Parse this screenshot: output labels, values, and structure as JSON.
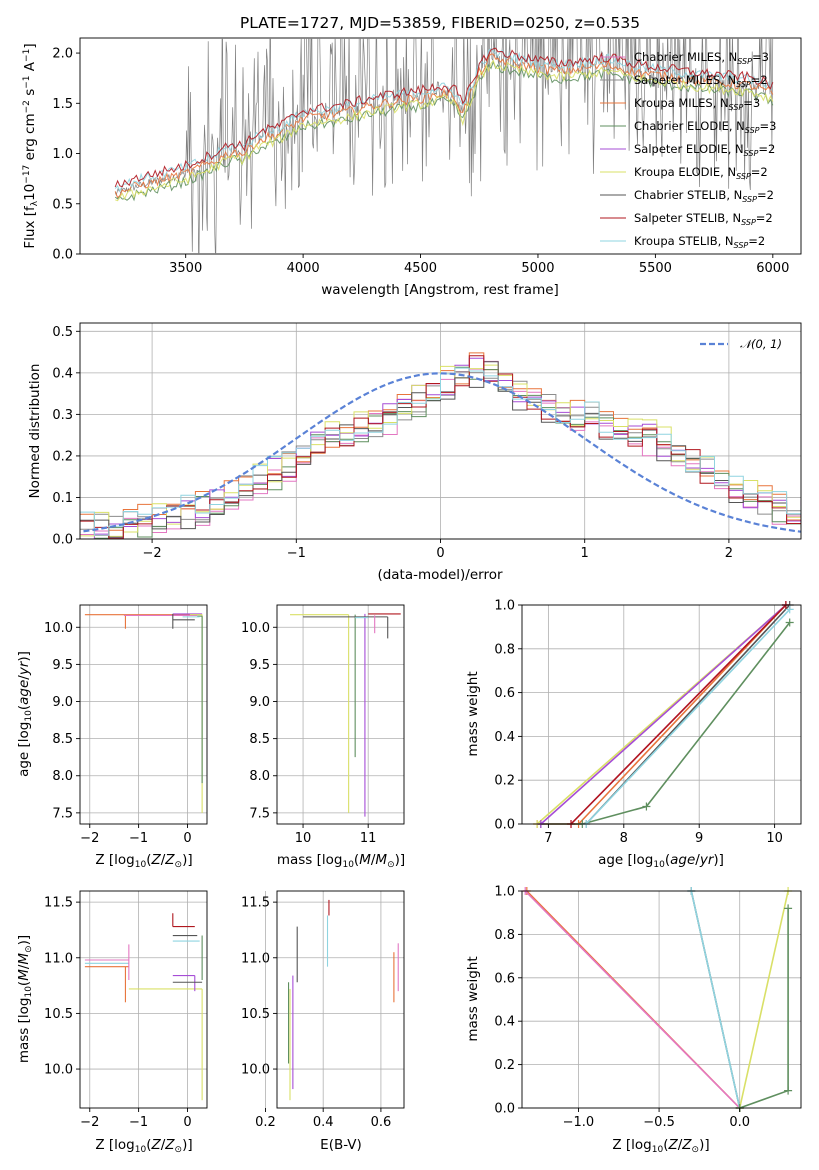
{
  "title": "PLATE=1727, MJD=53859, FIBERID=0250, z=0.535",
  "colors": {
    "Chabrier MILES": "#e377c2",
    "Salpeter MILES": "#8c8c8c",
    "Kroupa MILES": "#e8743b",
    "Chabrier ELODIE": "#5f8f5f",
    "Salpeter ELODIE": "#a64dd6",
    "Kroupa ELODIE": "#d9e067",
    "Chabrier STELIB": "#555555",
    "Salpeter STELIB": "#b0171f",
    "Kroupa STELIB": "#8fd4e0",
    "normal": "#5a82d6"
  },
  "chart_data": [
    {
      "id": "spectrum",
      "type": "line",
      "xlabel": "wavelength [Angstrom, rest frame]",
      "ylabel": "Flux [f",
      "xlim": [
        3050,
        6120
      ],
      "ylim": [
        0,
        2.15
      ],
      "xticks": [
        "3500",
        "4000",
        "4500",
        "5000",
        "5500",
        "6000"
      ],
      "yticks": [
        "0.0",
        "0.5",
        "1.0",
        "1.5",
        "2.0"
      ],
      "legend": [
        {
          "label": "Chabrier MILES, N",
          "n": "=3"
        },
        {
          "label": "Salpeter MILES, N",
          "n": "=2"
        },
        {
          "label": "Kroupa MILES, N",
          "n": "=3"
        },
        {
          "label": "Chabrier ELODIE, N",
          "n": "=3"
        },
        {
          "label": "Salpeter ELODIE, N",
          "n": "=2"
        },
        {
          "label": "Kroupa ELODIE, N",
          "n": "=2"
        },
        {
          "label": "Chabrier STELIB, N",
          "n": "=2"
        },
        {
          "label": "Salpeter STELIB, N",
          "n": "=2"
        },
        {
          "label": "Kroupa STELIB, N",
          "n": "=2"
        }
      ],
      "legend_position": "upper right",
      "model_continuum": [
        [
          3200,
          0.6
        ],
        [
          3300,
          0.68
        ],
        [
          3400,
          0.74
        ],
        [
          3500,
          0.8
        ],
        [
          3600,
          0.9
        ],
        [
          3700,
          1.02
        ],
        [
          3750,
          1.0
        ],
        [
          3800,
          1.12
        ],
        [
          3900,
          1.2
        ],
        [
          4000,
          1.35
        ],
        [
          4100,
          1.38
        ],
        [
          4200,
          1.42
        ],
        [
          4300,
          1.48
        ],
        [
          4400,
          1.52
        ],
        [
          4500,
          1.55
        ],
        [
          4600,
          1.6
        ],
        [
          4650,
          1.55
        ],
        [
          4680,
          1.4
        ],
        [
          4700,
          1.52
        ],
        [
          4750,
          1.8
        ],
        [
          4800,
          1.95
        ],
        [
          4900,
          1.9
        ],
        [
          5000,
          1.85
        ],
        [
          5100,
          1.82
        ],
        [
          5200,
          1.85
        ],
        [
          5300,
          1.88
        ],
        [
          5400,
          1.82
        ],
        [
          5500,
          1.78
        ],
        [
          5600,
          1.75
        ],
        [
          5700,
          1.72
        ],
        [
          5800,
          1.7
        ],
        [
          5900,
          1.68
        ],
        [
          6000,
          1.6
        ]
      ]
    },
    {
      "id": "residuals",
      "type": "line",
      "xlabel": "(data-model)/error",
      "ylabel": "Normed distribution",
      "xlim": [
        -2.5,
        2.5
      ],
      "ylim": [
        0,
        0.52
      ],
      "xticks": [
        "−2",
        "−1",
        "0",
        "1",
        "2"
      ],
      "yticks": [
        "0.0",
        "0.1",
        "0.2",
        "0.3",
        "0.4",
        "0.5"
      ],
      "grid": true,
      "legend": "",
      "legend_position": "upper right",
      "normal_curve": {
        "mu": 0,
        "sigma": 1
      },
      "histogram_envelope": [
        [
          -2.5,
          0.02
        ],
        [
          -2.2,
          0.03
        ],
        [
          -2.0,
          0.05
        ],
        [
          -1.7,
          0.07
        ],
        [
          -1.5,
          0.1
        ],
        [
          -1.3,
          0.13
        ],
        [
          -1.1,
          0.17
        ],
        [
          -0.9,
          0.22
        ],
        [
          -0.7,
          0.25
        ],
        [
          -0.5,
          0.27
        ],
        [
          -0.3,
          0.3
        ],
        [
          -0.1,
          0.35
        ],
        [
          0.1,
          0.38
        ],
        [
          0.3,
          0.42
        ],
        [
          0.5,
          0.36
        ],
        [
          0.7,
          0.32
        ],
        [
          0.9,
          0.3
        ],
        [
          1.1,
          0.28
        ],
        [
          1.3,
          0.26
        ],
        [
          1.5,
          0.24
        ],
        [
          1.7,
          0.2
        ],
        [
          1.9,
          0.15
        ],
        [
          2.1,
          0.11
        ],
        [
          2.3,
          0.08
        ],
        [
          2.5,
          0.06
        ]
      ]
    },
    {
      "id": "age-vs-Z",
      "type": "line",
      "xlabel": "Z [log",
      "ylabel": "age  [log",
      "xlim": [
        -2.2,
        0.4
      ],
      "ylim": [
        7.35,
        10.3
      ],
      "xticks": [
        "−2",
        "−1",
        "0"
      ],
      "yticks": [
        "7.5",
        "8.0",
        "8.5",
        "9.0",
        "9.5",
        "10.0"
      ]
    },
    {
      "id": "age-vs-mass",
      "type": "line",
      "xlabel": "mass [log",
      "ylabel": "",
      "xlim": [
        9.6,
        11.55
      ],
      "ylim": [
        7.35,
        10.3
      ],
      "xticks": [
        "10",
        "11"
      ],
      "yticks": [
        "7.5",
        "8.0",
        "8.5",
        "9.0",
        "9.5",
        "10.0"
      ]
    },
    {
      "id": "cumulative-mass-age",
      "type": "line",
      "xlabel": "age  [log",
      "ylabel": "mass weight",
      "xlim": [
        6.65,
        10.35
      ],
      "ylim": [
        0,
        1
      ],
      "xticks": [
        "7",
        "8",
        "9",
        "10"
      ],
      "yticks": [
        "0.0",
        "0.2",
        "0.4",
        "0.6",
        "0.8",
        "1.0"
      ],
      "series": [
        {
          "model": "Chabrier MILES",
          "x": [
            6.9,
            7.3,
            10.15
          ],
          "y": [
            0,
            0,
            1
          ]
        },
        {
          "model": "Kroupa MILES",
          "x": [
            6.85,
            7.4,
            10.15
          ],
          "y": [
            0,
            0,
            1
          ]
        },
        {
          "model": "Chabrier ELODIE",
          "x": [
            6.9,
            7.45,
            8.3,
            10.2
          ],
          "y": [
            0,
            0,
            0.08,
            0.92
          ]
        },
        {
          "model": "Kroupa ELODIE",
          "x": [
            6.85,
            10.15
          ],
          "y": [
            0,
            1
          ]
        },
        {
          "model": "Salpeter ELODIE",
          "x": [
            6.9,
            10.15
          ],
          "y": [
            0,
            1
          ]
        },
        {
          "model": "Chabrier STELIB",
          "x": [
            7.5,
            10.2
          ],
          "y": [
            0,
            1
          ]
        },
        {
          "model": "Kroupa STELIB",
          "x": [
            7.5,
            10.2
          ],
          "y": [
            0,
            0.98
          ]
        },
        {
          "model": "Salpeter STELIB",
          "x": [
            7.3,
            10.15
          ],
          "y": [
            0,
            1
          ]
        }
      ]
    },
    {
      "id": "mass-vs-Z",
      "type": "line",
      "xlabel": "Z [log",
      "ylabel": "mass [log",
      "xlim": [
        -2.2,
        0.4
      ],
      "ylim": [
        9.65,
        11.6
      ],
      "xticks": [
        "−2",
        "−1",
        "0"
      ],
      "yticks": [
        "10.0",
        "10.5",
        "11.0",
        "11.5"
      ]
    },
    {
      "id": "mass-vs-EBV",
      "type": "line",
      "xlabel": "E(B-V)",
      "ylabel": "",
      "xlim": [
        0.24,
        0.68
      ],
      "ylim": [
        9.65,
        11.6
      ],
      "xticks": [
        "0.2",
        "0.4",
        "0.6"
      ],
      "yticks": [
        "10.0",
        "10.5",
        "11.0",
        "11.5"
      ]
    },
    {
      "id": "cumulative-mass-Z",
      "type": "line",
      "xlabel": "Z [log",
      "ylabel": "mass weight",
      "xlim": [
        -1.35,
        0.38
      ],
      "ylim": [
        0,
        1
      ],
      "xticks": [
        "−1.0",
        "−0.5",
        "0.0"
      ],
      "yticks": [
        "0.0",
        "0.2",
        "0.4",
        "0.6",
        "0.8",
        "1.0"
      ],
      "series": [
        {
          "model": "Kroupa MILES",
          "x": [
            -1.32,
            0.0
          ],
          "y": [
            1,
            0
          ]
        },
        {
          "model": "Chabrier MILES",
          "x": [
            -1.33,
            0.0
          ],
          "y": [
            1,
            0
          ]
        },
        {
          "model": "Chabrier STELIB",
          "x": [
            -0.3,
            0.0
          ],
          "y": [
            1,
            0
          ]
        },
        {
          "model": "Kroupa STELIB",
          "x": [
            -0.3,
            0.0
          ],
          "y": [
            1,
            0
          ]
        },
        {
          "model": "Kroupa ELODIE",
          "x": [
            0.0,
            0.3
          ],
          "y": [
            0,
            1
          ]
        },
        {
          "model": "Chabrier ELODIE",
          "x": [
            0.0,
            0.3,
            0.3
          ],
          "y": [
            0,
            0.08,
            0.92
          ]
        }
      ]
    }
  ]
}
